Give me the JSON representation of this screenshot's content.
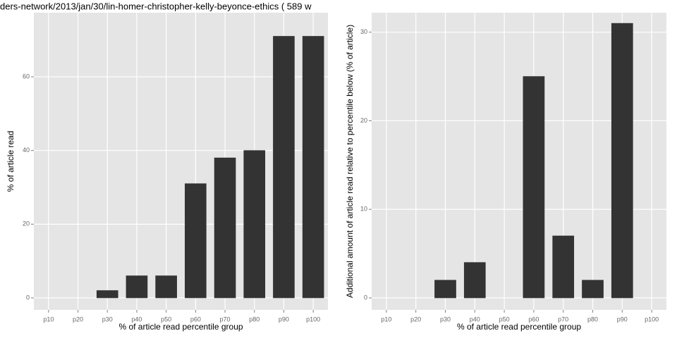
{
  "chart_data": [
    {
      "type": "bar",
      "title": "ders-network/2013/jan/30/lin-homer-christopher-kelly-beyonce-ethics ( 589 w",
      "xlabel": "% of article read percentile group",
      "ylabel": "% of article read",
      "categories": [
        "p10",
        "p20",
        "p30",
        "p40",
        "p50",
        "p60",
        "p70",
        "p80",
        "p90",
        "p100"
      ],
      "values": [
        0,
        0,
        2,
        6,
        6,
        31,
        38,
        40,
        71,
        71
      ],
      "color": "#333333",
      "ylim": [
        -3.25,
        77.4
      ],
      "yticks": [
        0,
        20,
        40,
        60
      ],
      "grid": true
    },
    {
      "type": "bar",
      "xlabel": "% of article read percentile group",
      "ylabel": "Additional amount of article read relative to percentile below (% of article)",
      "categories": [
        "p10",
        "p20",
        "p30",
        "p40",
        "p50",
        "p60",
        "p70",
        "p80",
        "p90",
        "p100"
      ],
      "values": [
        0,
        0,
        2,
        4,
        0,
        25,
        7,
        2,
        31,
        0
      ],
      "color": "#333333",
      "ylim": [
        -1.35,
        32.2
      ],
      "yticks": [
        0,
        10,
        20,
        30
      ],
      "grid": true
    }
  ]
}
